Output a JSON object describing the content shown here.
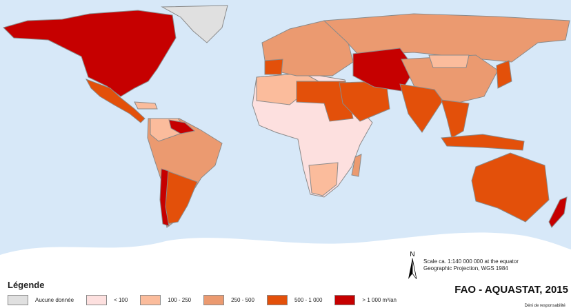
{
  "map": {
    "ocean_color": "#d7e8f8",
    "land_outline_color": "#8a8a8a",
    "antarctica_color": "#ffffff"
  },
  "legend": {
    "title": "Légende",
    "items": [
      {
        "label": "Aucune donnée",
        "color": "#e0e0e0"
      },
      {
        "label": "< 100",
        "color": "#fde0df"
      },
      {
        "label": "100 - 250",
        "color": "#fbbc9c"
      },
      {
        "label": "250 - 500",
        "color": "#eb9a70"
      },
      {
        "label": "500 - 1 000",
        "color": "#e3500a"
      },
      {
        "label": "> 1 000 m³/an",
        "color": "#c60000"
      }
    ]
  },
  "north_arrow": {
    "label": "N"
  },
  "scale_text": "Scale ca. 1:140 000 000 at the equator",
  "projection_text": "Geographic Projection, WGS 1984",
  "source": "FAO - AQUASTAT, 2015",
  "disclaimer": "Déni de responsabilité"
}
